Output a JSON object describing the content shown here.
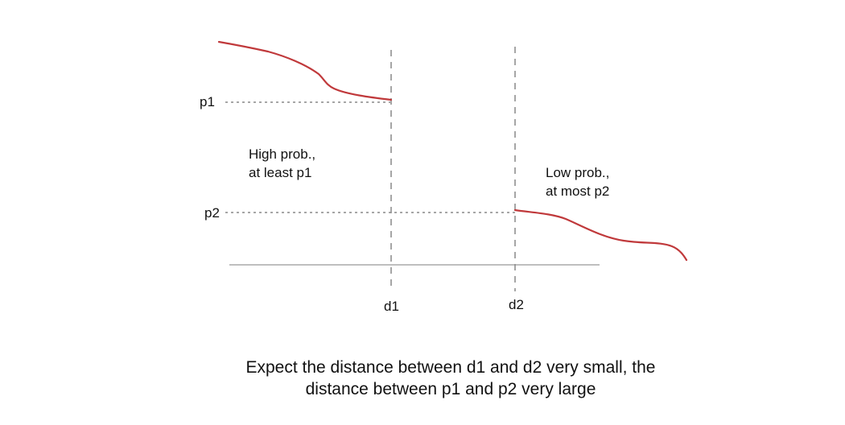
{
  "labels": {
    "p1": "p1",
    "p2": "p2",
    "d1": "d1",
    "d2": "d2"
  },
  "regions": {
    "high": {
      "line1": "High prob.,",
      "line2": "at least p1"
    },
    "low": {
      "line1": "Low prob.,",
      "line2": "at most p2"
    }
  },
  "caption": {
    "line1": "Expect the distance between d1 and d2 very small, the",
    "line2": "distance between p1 and p2 very large"
  },
  "colors": {
    "curve": "#c0393b",
    "dashed": "#888888",
    "axis": "#aaaaaa"
  }
}
